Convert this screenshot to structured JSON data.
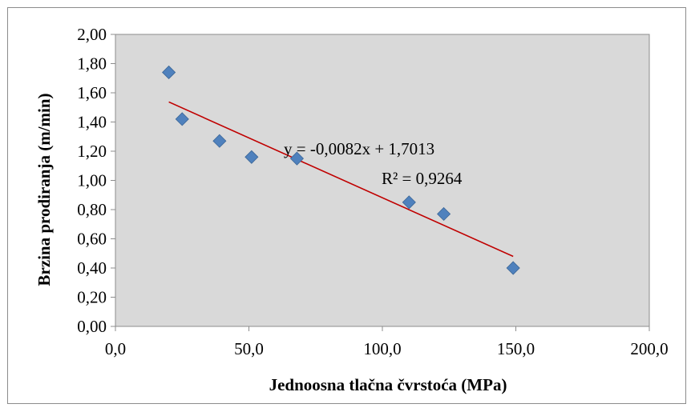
{
  "chart_data": {
    "type": "scatter",
    "title": "",
    "xlabel": "Jednoosna tlačna čvrstoća (MPa)",
    "ylabel": "Brzina prodiranja (m/min)",
    "xlim": [
      0,
      200
    ],
    "ylim": [
      0,
      2
    ],
    "x_ticks": [
      0,
      50,
      100,
      150,
      200
    ],
    "x_tick_labels": [
      "0,0",
      "50,0",
      "100,0",
      "150,0",
      "200,0"
    ],
    "y_ticks": [
      0,
      0.2,
      0.4,
      0.6,
      0.8,
      1.0,
      1.2,
      1.4,
      1.6,
      1.8,
      2.0
    ],
    "y_tick_labels": [
      "0,00",
      "0,20",
      "0,40",
      "0,60",
      "0,80",
      "1,00",
      "1,20",
      "1,40",
      "1,60",
      "1,80",
      "2,00"
    ],
    "grid": false,
    "legend": "none",
    "plot_background": "#d9d9d9",
    "marker_color": "#4f81bd",
    "trendline_color": "#c00000",
    "series": [
      {
        "x": [
          20,
          25,
          39,
          51,
          68,
          110,
          123,
          149
        ],
        "y": [
          1.74,
          1.42,
          1.27,
          1.16,
          1.15,
          0.85,
          0.77,
          0.4
        ]
      }
    ],
    "trendline": {
      "type": "linear",
      "slope": -0.0082,
      "intercept": 1.7013,
      "x_range": [
        20,
        149
      ],
      "equation_label": "y = -0,0082x + 1,7013",
      "r2_label": "R² = 0,9264"
    }
  }
}
